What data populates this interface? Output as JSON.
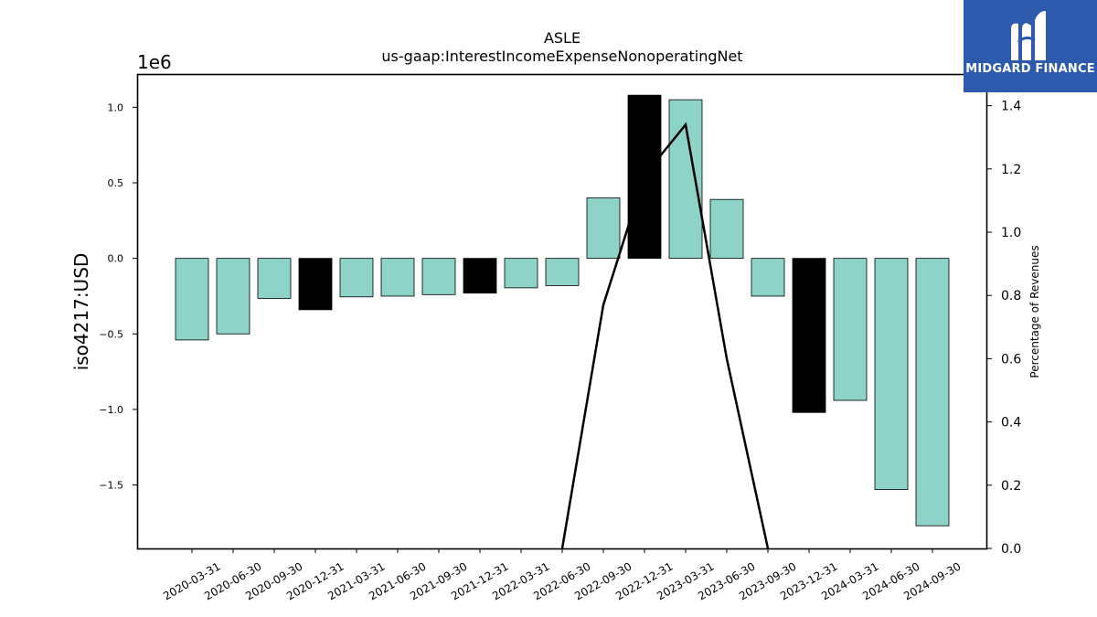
{
  "brand": {
    "name": "MIDGARD FINANCE",
    "logo_icon": "midgard-m-logo-icon",
    "background": "#2d5aad"
  },
  "chart_data": {
    "type": "bar",
    "title": "ASLE",
    "subtitle": "us-gaap:InterestIncomeExpenseNonoperatingNet",
    "ylabel": "iso4217:USD",
    "y_scale_label": "1e6",
    "y2label": "Percentage of Revenues",
    "ylim": [
      -1.92,
      1.22
    ],
    "y2lim": [
      0.0,
      1.5
    ],
    "yticks": [
      -1.5,
      -1.0,
      -0.5,
      0.0,
      0.5,
      1.0
    ],
    "ytick_labels": [
      "−1.5",
      "−1.0",
      "−0.5",
      "0.0",
      "0.5",
      "1.0"
    ],
    "y2ticks": [
      0.0,
      0.2,
      0.4,
      0.6,
      0.8,
      1.0,
      1.2,
      1.4
    ],
    "y2tick_labels": [
      "0.0",
      "0.2",
      "0.4",
      "0.6",
      "0.8",
      "1.0",
      "1.2",
      "1.4"
    ],
    "grid": false,
    "categories": [
      "2020-03-31",
      "2020-06-30",
      "2020-09-30",
      "2020-12-31",
      "2021-03-31",
      "2021-06-30",
      "2021-09-30",
      "2021-12-31",
      "2022-03-31",
      "2022-06-30",
      "2022-09-30",
      "2022-12-31",
      "2023-03-31",
      "2023-06-30",
      "2023-09-30",
      "2023-12-31",
      "2024-03-31",
      "2024-06-30",
      "2024-09-30"
    ],
    "values": [
      -0.54,
      -0.5,
      -0.265,
      -0.34,
      -0.255,
      -0.25,
      -0.24,
      -0.23,
      -0.195,
      -0.18,
      0.4,
      1.08,
      1.05,
      0.39,
      -0.25,
      -1.02,
      -0.94,
      -1.53,
      -1.77
    ],
    "bar_colors": [
      "#8dd3c7",
      "#8dd3c7",
      "#8dd3c7",
      "#000000",
      "#8dd3c7",
      "#8dd3c7",
      "#8dd3c7",
      "#000000",
      "#8dd3c7",
      "#8dd3c7",
      "#8dd3c7",
      "#000000",
      "#8dd3c7",
      "#8dd3c7",
      "#8dd3c7",
      "#000000",
      "#8dd3c7",
      "#8dd3c7",
      "#8dd3c7"
    ],
    "line_series": {
      "axis": "right",
      "color": "#000000",
      "points": [
        {
          "x": "2022-06-30",
          "y": 0.0
        },
        {
          "x": "2022-09-30",
          "y": 0.77
        },
        {
          "x": "2022-12-31",
          "y": 1.18
        },
        {
          "x": "2023-03-31",
          "y": 1.34
        },
        {
          "x": "2023-06-30",
          "y": 0.6
        },
        {
          "x": "2023-09-30",
          "y": 0.0
        }
      ]
    }
  }
}
